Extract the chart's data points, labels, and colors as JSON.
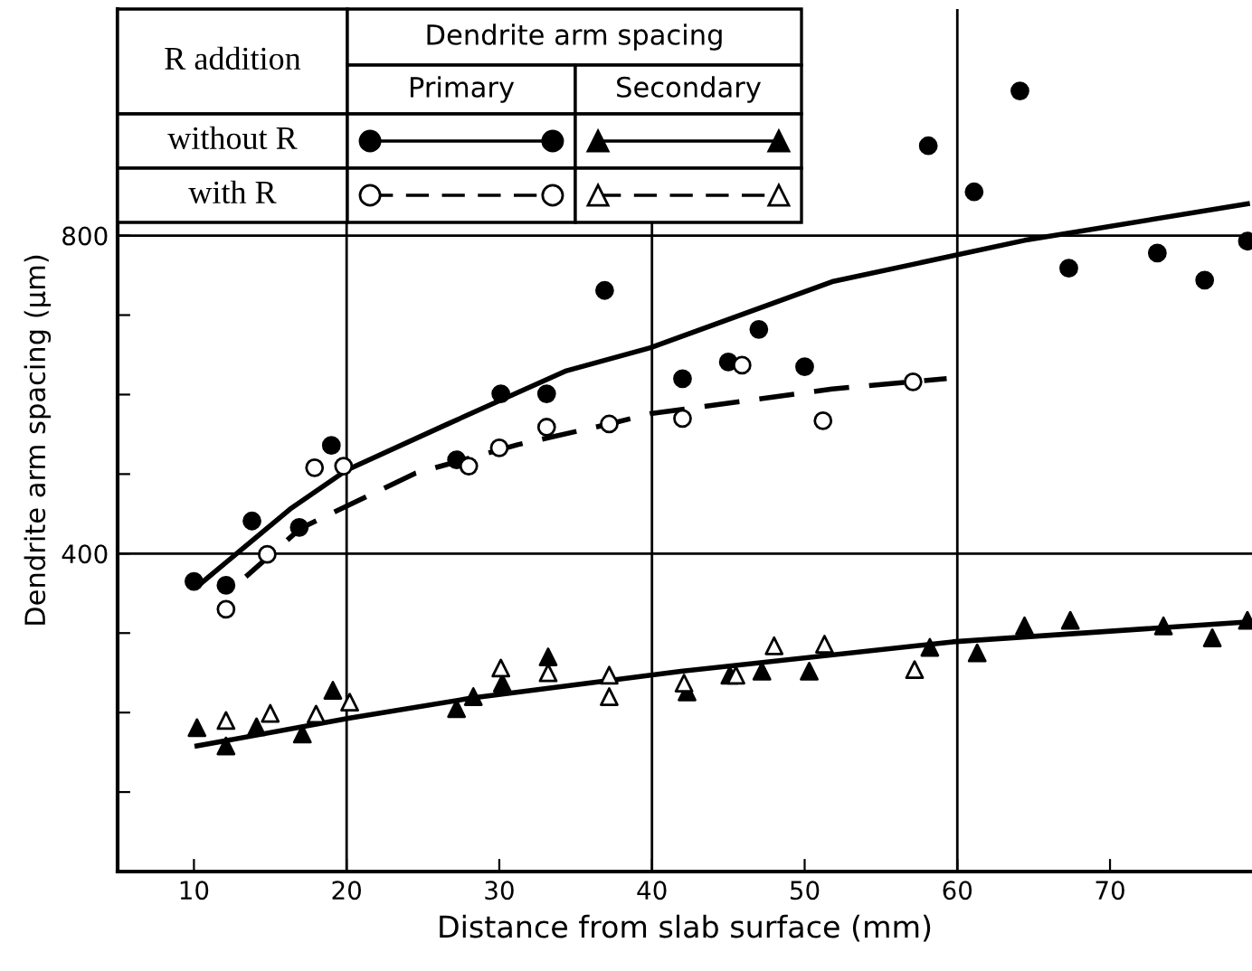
{
  "chart_data": {
    "type": "scatter",
    "xlabel": "Distance from slab surface (mm)",
    "ylabel": "Dendrite arm spacing (μm)",
    "xlim": [
      5,
      79.3
    ],
    "ylim": [
      0,
      1085
    ],
    "xticks": [
      10,
      20,
      30,
      40,
      50,
      60,
      70
    ],
    "yticks": [
      {
        "value": 100,
        "label": null
      },
      {
        "value": 200,
        "label": null
      },
      {
        "value": 300,
        "label": null
      },
      400,
      {
        "value": 500,
        "label": null
      },
      {
        "value": 600,
        "label": null
      },
      {
        "value": 700,
        "label": null
      },
      800,
      {
        "value": 900,
        "label": null
      },
      {
        "value": 1000,
        "label": null
      }
    ],
    "grid": false,
    "ref_lines": [
      {
        "axis": "x",
        "value": 20
      },
      {
        "axis": "x",
        "value": 40
      },
      {
        "axis": "x",
        "value": 60
      },
      {
        "axis": "y",
        "value": 400
      },
      {
        "axis": "y",
        "value": 800
      }
    ],
    "annotations": [
      "R addition",
      "Dendrite arm spacing",
      "Primary",
      "Secondary",
      "without R",
      "with R"
    ],
    "series": [
      {
        "marker": "circle",
        "color": "#000000",
        "line_style": "solid",
        "x": [
          10.0,
          12.1,
          13.8,
          16.9,
          19.0,
          27.2,
          30.1,
          33.1,
          36.9,
          42.0,
          45.0,
          47.0,
          50.0,
          58.1,
          61.1,
          64.1,
          67.3,
          73.1,
          76.2,
          79.0
        ],
        "values": [
          365,
          360,
          441,
          433,
          536,
          518,
          601,
          601,
          731,
          620,
          641,
          682,
          635,
          913,
          855,
          982,
          759,
          778,
          744,
          793
        ]
      },
      {
        "marker": "triangle",
        "color": "#000000",
        "line_style": "solid",
        "x": [
          10.2,
          12.1,
          14.1,
          17.1,
          19.1,
          27.2,
          28.3,
          30.2,
          33.2,
          42.3,
          45.1,
          47.2,
          50.3,
          58.2,
          61.3,
          64.4,
          67.4,
          73.5,
          76.7,
          79.0
        ],
        "values": [
          181,
          158,
          182,
          173,
          228,
          205,
          220,
          237,
          270,
          226,
          247,
          252,
          252,
          282,
          275,
          309,
          316,
          309,
          294,
          316
        ]
      },
      {
        "marker": "circle",
        "color": "#ffffff",
        "line_style": "dashed",
        "x": [
          12.1,
          14.8,
          17.9,
          19.8,
          28.0,
          30.0,
          33.1,
          37.2,
          42.0,
          45.9,
          51.2,
          57.1
        ],
        "values": [
          330,
          399,
          508,
          510,
          510,
          533,
          559,
          563,
          570,
          637,
          567,
          616
        ]
      },
      {
        "marker": "triangle",
        "color": "#ffffff",
        "line_style": "dashed",
        "x": [
          12.1,
          15.0,
          18.0,
          20.2,
          30.1,
          33.2,
          37.2,
          37.2,
          42.1,
          45.5,
          48.0,
          51.3,
          57.2
        ],
        "values": [
          190,
          199,
          198,
          213,
          256,
          250,
          247,
          220,
          237,
          247,
          284,
          286,
          254
        ]
      },
      {
        "type": "line",
        "marker": "none",
        "color": "#000000",
        "line_style": "solid",
        "x": [
          10.3,
          16.3,
          20.0,
          26.5,
          34.4,
          39.9,
          51.8,
          64.4,
          79.0
        ],
        "values": [
          360,
          456,
          505,
          562,
          630,
          659,
          742,
          794,
          840
        ]
      },
      {
        "type": "line",
        "marker": "none",
        "color": "#000000",
        "line_style": "dashed",
        "x": [
          13.4,
          17.0,
          24.5,
          31.2,
          37.2,
          39.9,
          51.8,
          59.3
        ],
        "values": [
          371,
          432,
          501,
          537,
          563,
          576,
          607,
          620
        ]
      },
      {
        "type": "line",
        "marker": "none",
        "color": "#000000",
        "line_style": "solid",
        "x": [
          10.2,
          20.2,
          28.1,
          41.9,
          59.7,
          79.0
        ],
        "values": [
          158,
          193,
          218,
          252,
          289,
          314
        ]
      }
    ]
  }
}
